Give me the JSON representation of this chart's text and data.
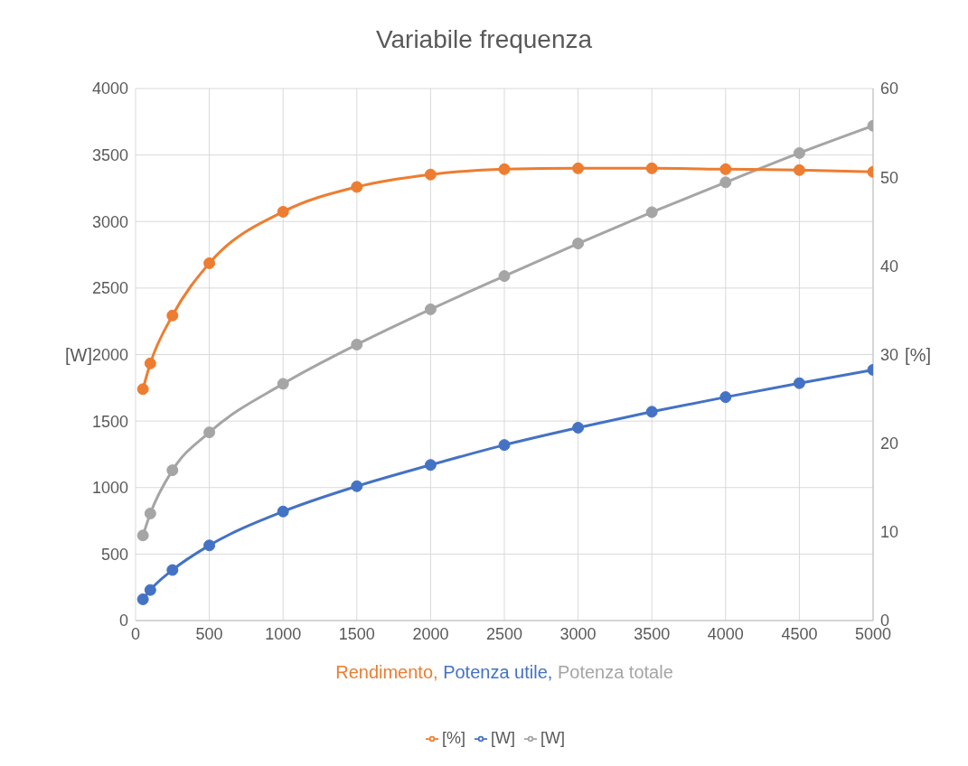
{
  "chart_data": {
    "type": "line",
    "title": "Variabile frequenza",
    "xlabel": "Rendimento, Potenza utile, Potenza totale",
    "ylabel": "[W]",
    "y2label": "[%]",
    "x": [
      50,
      100,
      250,
      500,
      1000,
      1500,
      2000,
      2500,
      3000,
      3500,
      4000,
      4500,
      5000
    ],
    "series": [
      {
        "name": "[W]",
        "color": "#4472c4",
        "values": [
          160,
          230,
          380,
          565,
          820,
          1010,
          1170,
          1320,
          1450,
          1570,
          1680,
          1785,
          1885
        ]
      },
      {
        "name": "[W]",
        "color": "#a5a5a5",
        "values": [
          640,
          805,
          1130,
          1415,
          1780,
          2075,
          2340,
          2590,
          2835,
          3070,
          3295,
          3515,
          3720
        ]
      },
      {
        "name": "[%]",
        "color": "#ed7d31",
        "axis": "y2",
        "values": [
          26.1,
          29.0,
          34.4,
          40.3,
          46.1,
          48.9,
          50.3,
          50.9,
          51.0,
          51.0,
          50.9,
          50.8,
          50.6
        ]
      }
    ],
    "xlim": [
      0,
      5000
    ],
    "xticks": [
      0,
      500,
      1000,
      1500,
      2000,
      2500,
      3000,
      3500,
      4000,
      4500,
      5000
    ],
    "ylim": [
      0,
      4000
    ],
    "yticks": [
      0,
      500,
      1000,
      1500,
      2000,
      2500,
      3000,
      3500,
      4000
    ],
    "y2lim": [
      0,
      60
    ],
    "y2ticks": [
      0,
      10,
      20,
      30,
      40,
      50,
      60
    ],
    "grid": true,
    "legend": "bottom",
    "marker": "circle",
    "line_style": "solid"
  }
}
